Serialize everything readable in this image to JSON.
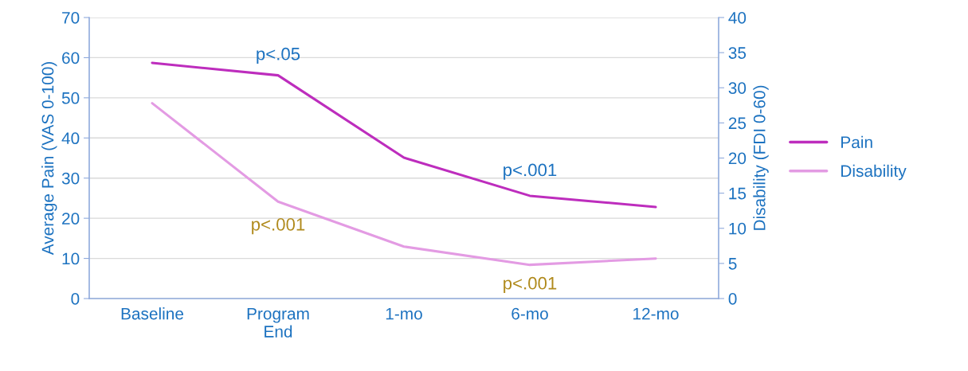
{
  "chart_data": {
    "type": "line",
    "categories": [
      "Baseline",
      "Program\nEnd",
      "1-mo",
      "6-mo",
      "12-mo"
    ],
    "series": [
      {
        "name": "Pain",
        "color": "#bd2dbd",
        "values": [
          58.7,
          55.6,
          35.1,
          25.6,
          22.8
        ]
      },
      {
        "name": "Disability",
        "color": "#e39be3",
        "values": [
          27.8,
          13.8,
          7.4,
          4.8,
          5.7
        ],
        "axis": "y2"
      }
    ],
    "ylabel": "Average Pain (VAS 0-100)",
    "y2label": "Disability (FDI 0-60)",
    "ylim": [
      0,
      70
    ],
    "yticks": [
      0,
      10,
      20,
      30,
      40,
      50,
      60,
      70
    ],
    "y2lim": [
      0,
      40
    ],
    "y2ticks": [
      0,
      5,
      10,
      15,
      20,
      25,
      30,
      35,
      40
    ],
    "grid": "y",
    "legend": "right",
    "marker": "none",
    "annotations": [
      "p<.05",
      "p<.001",
      "p<.001",
      "p<.001"
    ]
  }
}
